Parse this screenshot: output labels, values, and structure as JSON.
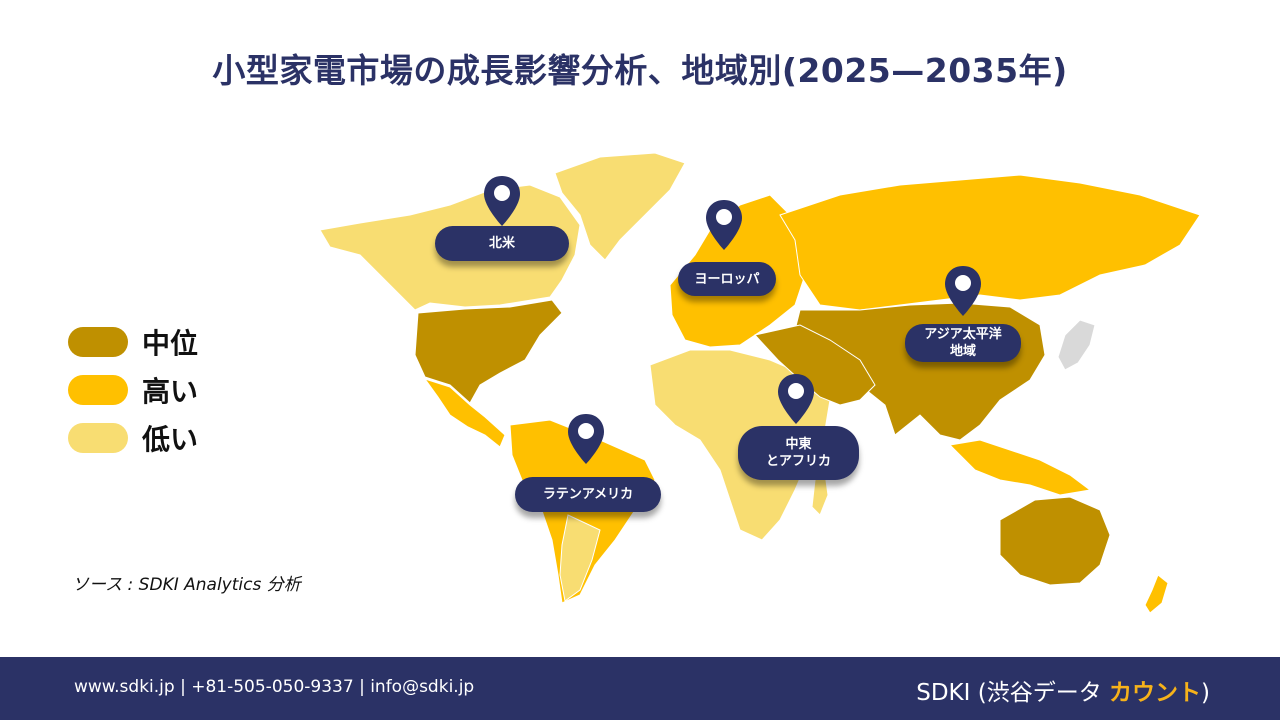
{
  "title": "小型家電市場の成長影響分析、地域別(2025—2035年)",
  "colors": {
    "medium": "#bf9000",
    "high": "#ffc000",
    "low": "#f8dd72",
    "navy": "#2b3266",
    "accent": "#f6b21a"
  },
  "legend": [
    {
      "label": "中位",
      "color": "#bf9000"
    },
    {
      "label": "高い",
      "color": "#ffc000"
    },
    {
      "label": "低い",
      "color": "#f8dd72"
    }
  ],
  "regions": [
    {
      "name": "北米",
      "lines": [
        "北米"
      ],
      "pin_icon": "location-pin-icon"
    },
    {
      "name": "ヨーロッパ",
      "lines": [
        "ヨーロッパ"
      ],
      "pin_icon": "location-pin-icon"
    },
    {
      "name": "アジア太平洋地域",
      "lines": [
        "アジア太平洋",
        "地域"
      ],
      "pin_icon": "location-pin-icon"
    },
    {
      "name": "中東とアフリカ",
      "lines": [
        "中東",
        "とアフリカ"
      ],
      "pin_icon": "location-pin-icon"
    },
    {
      "name": "ラテンアメリカ",
      "lines": [
        "ラテンアメリカ"
      ],
      "pin_icon": "location-pin-icon"
    }
  ],
  "source": "ソース : SDKI Analytics 分析",
  "footer": {
    "contact": "www.sdki.jp  | +81-505-050-9337 | info@sdki.jp",
    "brand_prefix": "SDKI (渋谷データ ",
    "brand_accent": "カウント",
    "brand_suffix": ")"
  }
}
